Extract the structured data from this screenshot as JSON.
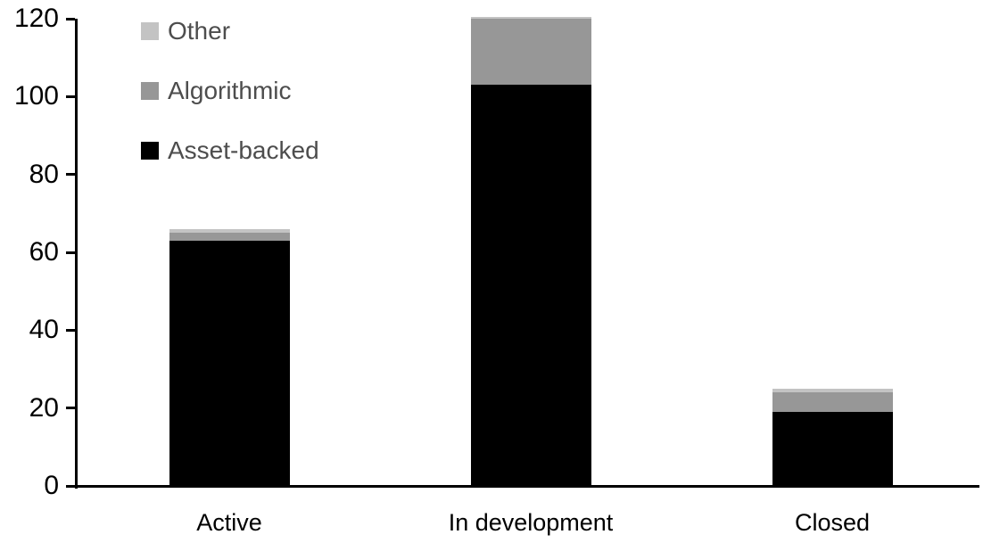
{
  "chart_data": {
    "type": "bar",
    "stacked": true,
    "title": "",
    "xlabel": "",
    "ylabel": "",
    "categories": [
      "Active",
      "In development",
      "Closed"
    ],
    "series": [
      {
        "name": "Asset-backed",
        "color": "#000000",
        "values": [
          63,
          103,
          19
        ]
      },
      {
        "name": "Algorithmic",
        "color": "#979797",
        "values": [
          2,
          17,
          5
        ]
      },
      {
        "name": "Other",
        "color": "#c3c3c3",
        "values": [
          1,
          0.5,
          1
        ]
      }
    ],
    "ylim": [
      0,
      120
    ],
    "yticks": [
      0,
      20,
      40,
      60,
      80,
      100,
      120
    ],
    "grid": false,
    "legend": {
      "position": "top-left",
      "order": [
        "Other",
        "Algorithmic",
        "Asset-backed"
      ],
      "text_color": "#4d4d4d"
    },
    "axis_color": "#000000",
    "background_color": "#ffffff"
  }
}
